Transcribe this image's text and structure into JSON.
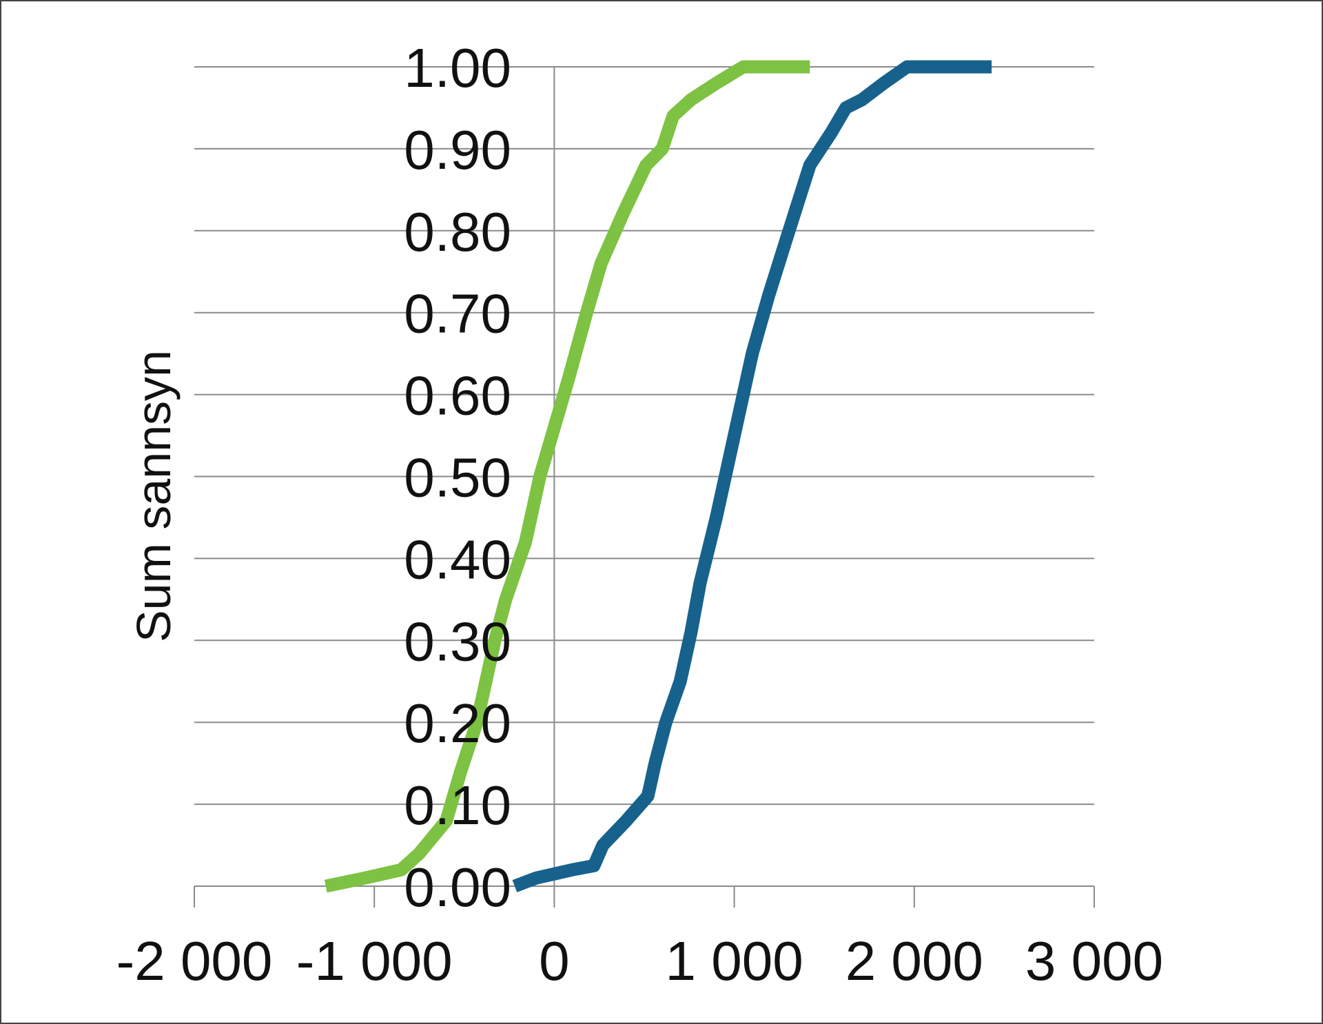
{
  "chart_data": {
    "type": "line",
    "title": "",
    "xlabel": "",
    "ylabel": "Sum sannsyn",
    "xlim": [
      -2000,
      3000
    ],
    "ylim": [
      0,
      1
    ],
    "x_ticks": [
      -2000,
      -1000,
      0,
      1000,
      2000,
      3000
    ],
    "x_tick_labels": [
      "-2 000",
      "-1 000",
      "0",
      "1 000",
      "2 000",
      "3 000"
    ],
    "y_ticks": [
      0,
      0.1,
      0.2,
      0.3,
      0.4,
      0.5,
      0.6,
      0.7,
      0.8,
      0.9,
      1.0
    ],
    "y_tick_labels": [
      "0.00",
      "0.10",
      "0.20",
      "0.30",
      "0.40",
      "0.50",
      "0.60",
      "0.70",
      "0.80",
      "0.90",
      "1.00"
    ],
    "grid": true,
    "legend": "none",
    "series": [
      {
        "color": "#7dc242",
        "x": [
          -1270,
          -1050,
          -850,
          -750,
          -600,
          -520,
          -430,
          -330,
          -270,
          -160,
          -80,
          0,
          80,
          180,
          260,
          380,
          510,
          600,
          660,
          760,
          900,
          1050,
          1100,
          1420
        ],
        "y": [
          0.0,
          0.01,
          0.02,
          0.04,
          0.08,
          0.14,
          0.2,
          0.3,
          0.35,
          0.42,
          0.5,
          0.56,
          0.62,
          0.7,
          0.76,
          0.82,
          0.88,
          0.9,
          0.94,
          0.96,
          0.98,
          1.0,
          1.0,
          1.0
        ]
      },
      {
        "color": "#17628c",
        "x": [
          -220,
          -100,
          100,
          220,
          270,
          400,
          520,
          560,
          620,
          700,
          760,
          810,
          900,
          1000,
          1100,
          1190,
          1290,
          1420,
          1540,
          1620,
          1710,
          1830,
          1960,
          2060,
          2430
        ],
        "y": [
          0.0,
          0.01,
          0.02,
          0.025,
          0.05,
          0.08,
          0.11,
          0.15,
          0.2,
          0.25,
          0.31,
          0.37,
          0.45,
          0.55,
          0.65,
          0.72,
          0.79,
          0.88,
          0.92,
          0.95,
          0.96,
          0.98,
          1.0,
          1.0,
          1.0
        ]
      }
    ]
  }
}
